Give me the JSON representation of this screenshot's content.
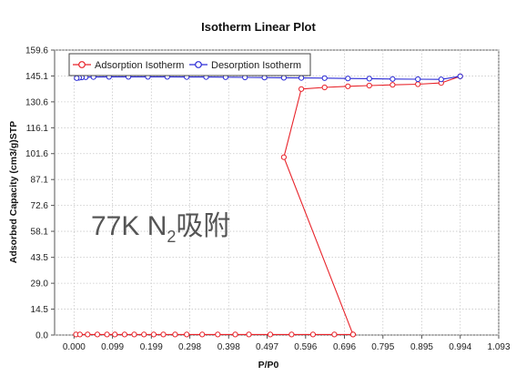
{
  "chart_data": {
    "type": "line",
    "title": "Isotherm Linear Plot",
    "xlabel": "P/P0",
    "ylabel": "Adsorbed Capacity (cm3/g)STP",
    "annotation": {
      "main": "77K N",
      "subscript": "2",
      "suffix": "吸附"
    },
    "xlim": [
      -0.05,
      1.093
    ],
    "ylim": [
      0.0,
      159.6
    ],
    "xticks": [
      "0.000",
      "0.099",
      "0.199",
      "0.298",
      "0.398",
      "0.497",
      "0.596",
      "0.696",
      "0.795",
      "0.895",
      "0.994",
      "1.093"
    ],
    "xtick_values": [
      0.0,
      0.099,
      0.199,
      0.298,
      0.398,
      0.497,
      0.596,
      0.696,
      0.795,
      0.895,
      0.994,
      1.093
    ],
    "yticks": [
      "0.0",
      "14.5",
      "29.0",
      "43.5",
      "58.1",
      "72.6",
      "87.1",
      "101.6",
      "116.1",
      "130.6",
      "145.1",
      "159.6"
    ],
    "ytick_values": [
      0.0,
      14.5,
      29.0,
      43.5,
      58.1,
      72.6,
      87.1,
      101.6,
      116.1,
      130.6,
      145.1,
      159.6
    ],
    "grid": true,
    "legend": "top-left",
    "series": [
      {
        "name": "Adsorption Isotherm",
        "color": "#e8232a",
        "x": [
          0.005,
          0.015,
          0.035,
          0.06,
          0.085,
          0.105,
          0.13,
          0.155,
          0.18,
          0.205,
          0.23,
          0.26,
          0.29,
          0.33,
          0.37,
          0.415,
          0.45,
          0.505,
          0.56,
          0.615,
          0.67,
          0.718,
          0.718,
          0.54,
          0.585,
          0.645,
          0.705,
          0.76,
          0.82,
          0.885,
          0.945,
          0.994
        ],
        "y": [
          0.3,
          0.3,
          0.3,
          0.3,
          0.3,
          0.3,
          0.3,
          0.3,
          0.3,
          0.3,
          0.3,
          0.3,
          0.3,
          0.3,
          0.3,
          0.3,
          0.3,
          0.3,
          0.3,
          0.3,
          0.3,
          0.3,
          0.3,
          99.6,
          137.8,
          138.7,
          139.3,
          139.7,
          140.1,
          140.5,
          141.2,
          144.9
        ]
      },
      {
        "name": "Desorption Isotherm",
        "color": "#2b2bd6",
        "x": [
          0.994,
          0.945,
          0.885,
          0.82,
          0.76,
          0.705,
          0.645,
          0.585,
          0.54,
          0.49,
          0.44,
          0.39,
          0.34,
          0.29,
          0.24,
          0.19,
          0.14,
          0.09,
          0.05,
          0.03,
          0.02,
          0.013,
          0.007
        ],
        "y": [
          144.9,
          143.2,
          143.3,
          143.4,
          143.6,
          143.7,
          143.9,
          144.0,
          144.1,
          144.2,
          144.3,
          144.4,
          144.5,
          144.5,
          144.6,
          144.6,
          144.6,
          144.6,
          144.5,
          144.4,
          144.3,
          144.1,
          143.9
        ]
      }
    ]
  }
}
